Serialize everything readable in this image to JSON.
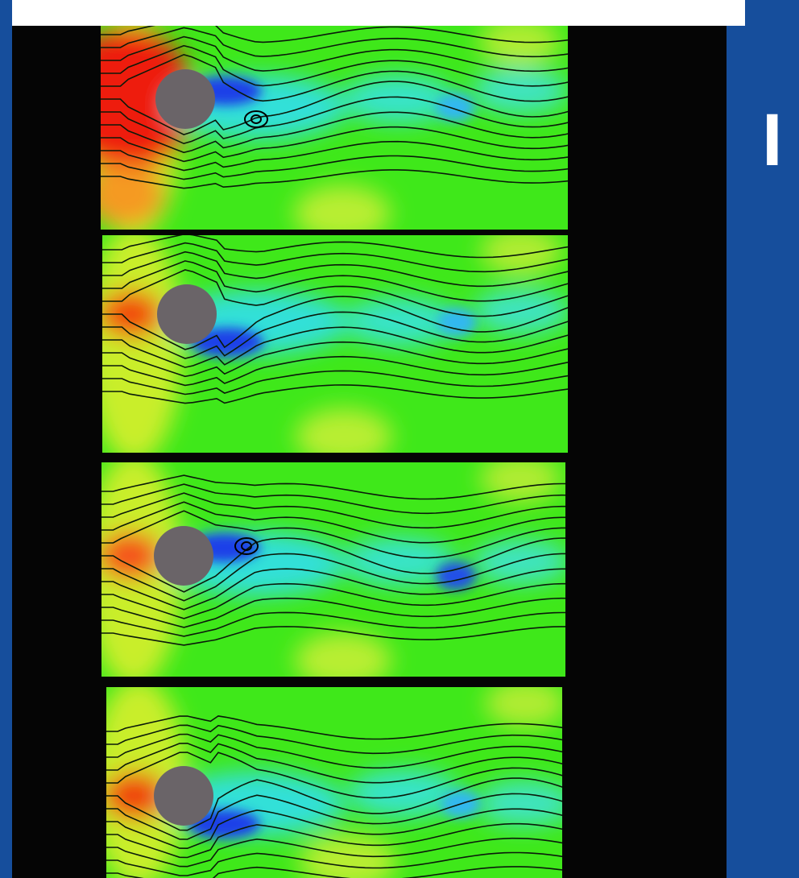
{
  "side_text": "I"
}
